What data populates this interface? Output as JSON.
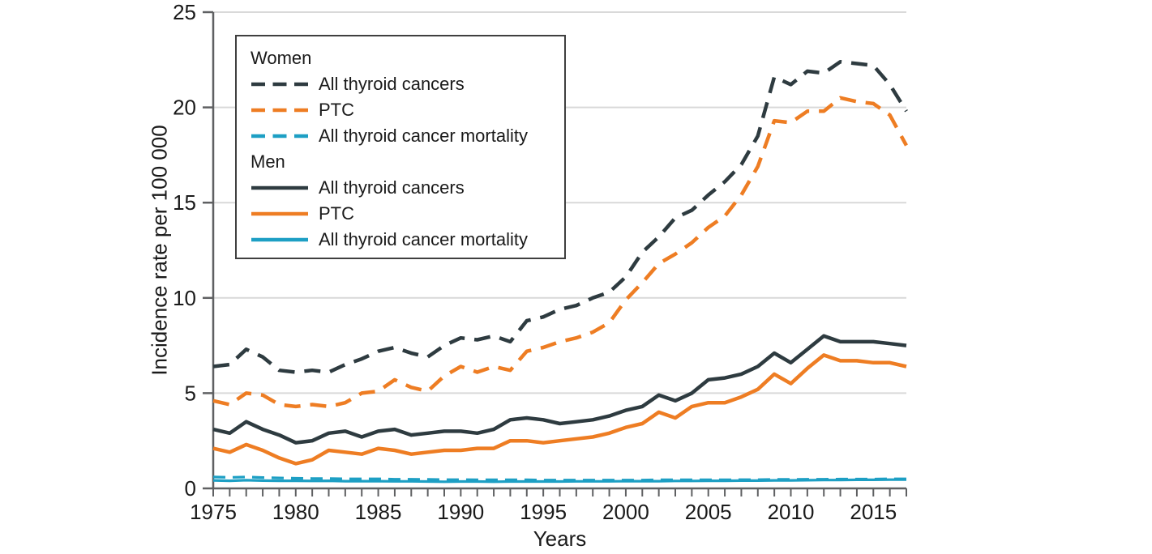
{
  "figure": {
    "background": "#ffffff"
  },
  "colors": {
    "dark": "#2e3b40",
    "orange": "#ee7d23",
    "teal": "#1d9fc4",
    "gridline": "#d9d9d9",
    "axis": "#5f6062",
    "text": "#1a1a1a"
  },
  "chart_data": {
    "type": "line",
    "title": "",
    "xlabel": "Years",
    "ylabel": "Incidence rate per 100 000",
    "xlim": [
      1975,
      2017
    ],
    "ylim": [
      0,
      25
    ],
    "yticks": [
      0,
      5,
      10,
      15,
      20,
      25
    ],
    "xtick_minor_every": 1,
    "xticks_labeled": [
      1975,
      1980,
      1985,
      1990,
      1995,
      2000,
      2005,
      2010,
      2015
    ],
    "grid": "horizontal",
    "legend_position": "upper-left",
    "x": [
      1975,
      1976,
      1977,
      1978,
      1979,
      1980,
      1981,
      1982,
      1983,
      1984,
      1985,
      1986,
      1987,
      1988,
      1989,
      1990,
      1991,
      1992,
      1993,
      1994,
      1995,
      1996,
      1997,
      1998,
      1999,
      2000,
      2001,
      2002,
      2003,
      2004,
      2005,
      2006,
      2007,
      2008,
      2009,
      2010,
      2011,
      2012,
      2013,
      2014,
      2015,
      2016,
      2017
    ],
    "series": [
      {
        "id": "women-all-thyroid-cancers",
        "group": "Women",
        "name": "All thyroid cancers",
        "color": "#2e3b40",
        "dashed": true,
        "width": 4.5,
        "values": [
          6.4,
          6.5,
          7.3,
          6.9,
          6.2,
          6.1,
          6.2,
          6.1,
          6.5,
          6.8,
          7.2,
          7.4,
          7.1,
          6.9,
          7.5,
          7.9,
          7.8,
          8.0,
          7.7,
          8.8,
          9.0,
          9.4,
          9.6,
          10.0,
          10.3,
          11.1,
          12.4,
          13.2,
          14.2,
          14.6,
          15.4,
          16.1,
          17.0,
          18.5,
          21.6,
          21.2,
          21.9,
          21.8,
          22.4,
          22.3,
          22.2,
          21.2,
          19.8
        ]
      },
      {
        "id": "women-ptc",
        "group": "Women",
        "name": "PTC",
        "color": "#ee7d23",
        "dashed": true,
        "width": 4.5,
        "values": [
          4.6,
          4.4,
          5.0,
          4.9,
          4.4,
          4.3,
          4.4,
          4.3,
          4.5,
          5.0,
          5.1,
          5.7,
          5.3,
          5.1,
          5.9,
          6.4,
          6.1,
          6.4,
          6.2,
          7.2,
          7.4,
          7.7,
          7.9,
          8.2,
          8.7,
          9.9,
          10.8,
          11.8,
          12.3,
          12.9,
          13.7,
          14.3,
          15.4,
          16.9,
          19.3,
          19.2,
          19.8,
          19.8,
          20.5,
          20.3,
          20.2,
          19.6,
          18.0
        ]
      },
      {
        "id": "men-all-thyroid-cancers",
        "group": "Men",
        "name": "All thyroid cancers",
        "color": "#2e3b40",
        "dashed": false,
        "width": 4.5,
        "values": [
          3.1,
          2.9,
          3.5,
          3.1,
          2.8,
          2.4,
          2.5,
          2.9,
          3.0,
          2.7,
          3.0,
          3.1,
          2.8,
          2.9,
          3.0,
          3.0,
          2.9,
          3.1,
          3.6,
          3.7,
          3.6,
          3.4,
          3.5,
          3.6,
          3.8,
          4.1,
          4.3,
          4.9,
          4.6,
          5.0,
          5.7,
          5.8,
          6.0,
          6.4,
          7.1,
          6.6,
          7.3,
          8.0,
          7.7,
          7.7,
          7.7,
          7.6,
          7.5
        ]
      },
      {
        "id": "men-ptc",
        "group": "Men",
        "name": "PTC",
        "color": "#ee7d23",
        "dashed": false,
        "width": 4.5,
        "values": [
          2.1,
          1.9,
          2.3,
          2.0,
          1.6,
          1.3,
          1.5,
          2.0,
          1.9,
          1.8,
          2.1,
          2.0,
          1.8,
          1.9,
          2.0,
          2.0,
          2.1,
          2.1,
          2.5,
          2.5,
          2.4,
          2.5,
          2.6,
          2.7,
          2.9,
          3.2,
          3.4,
          4.0,
          3.7,
          4.3,
          4.5,
          4.5,
          4.8,
          5.2,
          6.0,
          5.5,
          6.3,
          7.0,
          6.7,
          6.7,
          6.6,
          6.6,
          6.4
        ]
      },
      {
        "id": "men-all-thyroid-cancer-mortality",
        "group": "Men",
        "name": "All thyroid cancer mortality",
        "color": "#1d9fc4",
        "dashed": false,
        "width": 3.2,
        "values": [
          0.42,
          0.4,
          0.43,
          0.41,
          0.4,
          0.4,
          0.39,
          0.4,
          0.38,
          0.38,
          0.38,
          0.37,
          0.37,
          0.36,
          0.35,
          0.36,
          0.36,
          0.35,
          0.36,
          0.36,
          0.36,
          0.36,
          0.37,
          0.37,
          0.37,
          0.38,
          0.38,
          0.38,
          0.39,
          0.39,
          0.4,
          0.4,
          0.41,
          0.41,
          0.42,
          0.42,
          0.43,
          0.44,
          0.44,
          0.45,
          0.45,
          0.46,
          0.46
        ]
      },
      {
        "id": "women-all-thyroid-cancer-mortality",
        "group": "Women",
        "name": "All thyroid cancer mortality",
        "color": "#1d9fc4",
        "dashed": true,
        "width": 3.2,
        "values": [
          0.6,
          0.58,
          0.6,
          0.57,
          0.55,
          0.53,
          0.52,
          0.52,
          0.5,
          0.5,
          0.5,
          0.48,
          0.48,
          0.47,
          0.46,
          0.46,
          0.45,
          0.45,
          0.45,
          0.45,
          0.44,
          0.44,
          0.44,
          0.44,
          0.44,
          0.44,
          0.44,
          0.45,
          0.45,
          0.45,
          0.45,
          0.45,
          0.46,
          0.46,
          0.47,
          0.47,
          0.48,
          0.48,
          0.49,
          0.49,
          0.49,
          0.5,
          0.5
        ]
      }
    ],
    "legend": {
      "groups": [
        {
          "label": "Women",
          "items": [
            "All thyroid cancers",
            "PTC",
            "All thyroid cancer mortality"
          ]
        },
        {
          "label": "Men",
          "items": [
            "All thyroid cancers",
            "PTC",
            "All thyroid cancer mortality"
          ]
        }
      ]
    }
  }
}
